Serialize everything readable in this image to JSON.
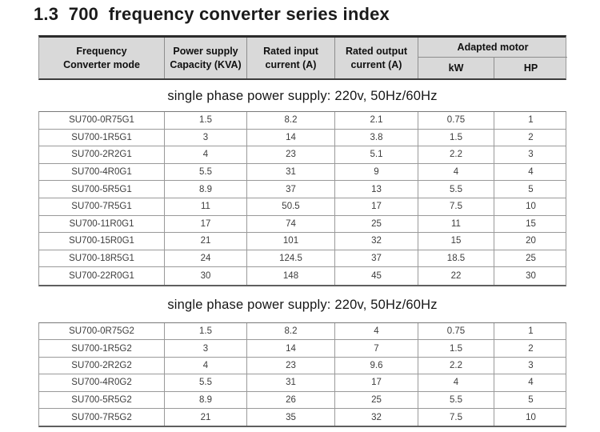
{
  "page_title": "1.3  700  frequency converter series index",
  "colors": {
    "header_bg": "#d9d9d9",
    "heavy_border": "#2b2b2b",
    "grid_border": "#9a9a9a",
    "body_text": "#3d3d3d",
    "header_text": "#101010"
  },
  "table": {
    "header": {
      "columns": [
        {
          "line1": "Frequency",
          "line2": "Converter mode"
        },
        {
          "line1": "Power supply",
          "line2": "Capacity (KVA)"
        },
        {
          "line1": "Rated input",
          "line2": "current (A)"
        },
        {
          "line1": "Rated output",
          "line2": "current (A)"
        }
      ],
      "adapted_motor": "Adapted motor",
      "sub_columns": [
        "kW",
        "HP"
      ]
    },
    "sections": [
      {
        "title": "single phase power supply: 220v, 50Hz/60Hz",
        "rows": [
          [
            "SU700-0R75G1",
            "1.5",
            "8.2",
            "2.1",
            "0.75",
            "1"
          ],
          [
            "SU700-1R5G1",
            "3",
            "14",
            "3.8",
            "1.5",
            "2"
          ],
          [
            "SU700-2R2G1",
            "4",
            "23",
            "5.1",
            "2.2",
            "3"
          ],
          [
            "SU700-4R0G1",
            "5.5",
            "31",
            "9",
            "4",
            "4"
          ],
          [
            "SU700-5R5G1",
            "8.9",
            "37",
            "13",
            "5.5",
            "5"
          ],
          [
            "SU700-7R5G1",
            "11",
            "50.5",
            "17",
            "7.5",
            "10"
          ],
          [
            "SU700-11R0G1",
            "17",
            "74",
            "25",
            "11",
            "15"
          ],
          [
            "SU700-15R0G1",
            "21",
            "101",
            "32",
            "15",
            "20"
          ],
          [
            "SU700-18R5G1",
            "24",
            "124.5",
            "37",
            "18.5",
            "25"
          ],
          [
            "SU700-22R0G1",
            "30",
            "148",
            "45",
            "22",
            "30"
          ]
        ]
      },
      {
        "title": "single phase power supply: 220v, 50Hz/60Hz",
        "rows": [
          [
            "SU700-0R75G2",
            "1.5",
            "8.2",
            "4",
            "0.75",
            "1"
          ],
          [
            "SU700-1R5G2",
            "3",
            "14",
            "7",
            "1.5",
            "2"
          ],
          [
            "SU700-2R2G2",
            "4",
            "23",
            "9.6",
            "2.2",
            "3"
          ],
          [
            "SU700-4R0G2",
            "5.5",
            "31",
            "17",
            "4",
            "4"
          ],
          [
            "SU700-5R5G2",
            "8.9",
            "26",
            "25",
            "5.5",
            "5"
          ],
          [
            "SU700-7R5G2",
            "21",
            "35",
            "32",
            "7.5",
            "10"
          ]
        ]
      }
    ]
  }
}
